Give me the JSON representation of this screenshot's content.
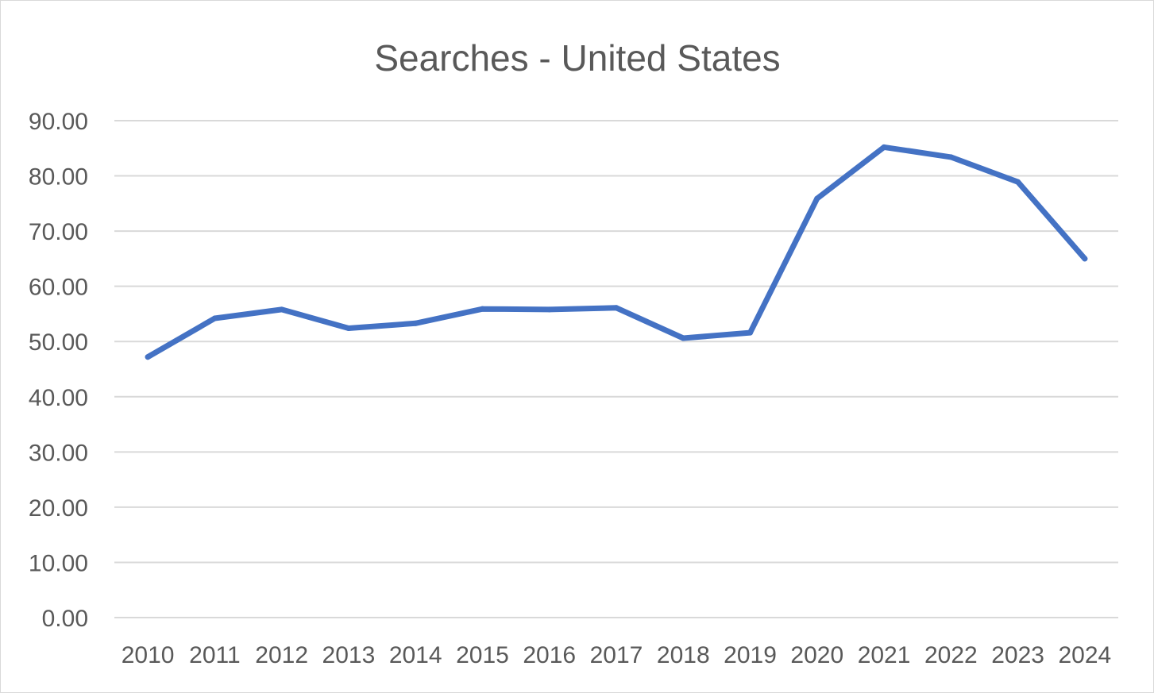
{
  "chart_data": {
    "type": "line",
    "title": "Searches - United States",
    "xlabel": "",
    "ylabel": "",
    "categories": [
      "2010",
      "2011",
      "2012",
      "2013",
      "2014",
      "2015",
      "2016",
      "2017",
      "2018",
      "2019",
      "2020",
      "2021",
      "2022",
      "2023",
      "2024"
    ],
    "series": [
      {
        "color": "#4472c4",
        "values": [
          47.2,
          54.2,
          55.8,
          52.4,
          53.3,
          55.9,
          55.8,
          56.1,
          50.6,
          51.6,
          75.9,
          85.2,
          83.4,
          78.9,
          65.0
        ]
      }
    ],
    "ylim": [
      0,
      90
    ],
    "yticks": [
      "0.00",
      "10.00",
      "20.00",
      "30.00",
      "40.00",
      "50.00",
      "60.00",
      "70.00",
      "80.00",
      "90.00"
    ],
    "grid": true,
    "legend": "none"
  }
}
